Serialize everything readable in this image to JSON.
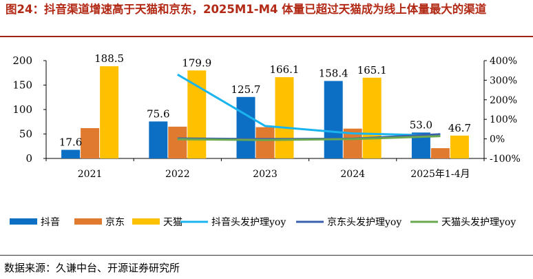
{
  "header": {
    "title": "图24：抖音渠道增速高于天猫和京东，2025M1-M4 体量已超过天猫成为线上体量最大的渠道"
  },
  "footer": {
    "source": "数据来源：久谦中台、开源证券研究所"
  },
  "chart_data": {
    "type": "bar",
    "categories": [
      "2021",
      "2022",
      "2023",
      "2024",
      "2025年1-4月"
    ],
    "series": [
      {
        "name": "抖音",
        "type": "bar",
        "axis": "left",
        "color": "#0d6fc4",
        "values": [
          17.6,
          75.6,
          125.7,
          158.4,
          53.0
        ],
        "labels": [
          "17.6",
          "75.6",
          "125.7",
          "158.4",
          "53.0"
        ]
      },
      {
        "name": "京东",
        "type": "bar",
        "axis": "left",
        "color": "#e07a2e",
        "values": [
          62,
          65,
          64,
          61,
          21
        ],
        "labels": [
          "",
          "",
          "",
          "",
          ""
        ]
      },
      {
        "name": "天猫",
        "type": "bar",
        "axis": "left",
        "color": "#ffc000",
        "values": [
          188.5,
          179.9,
          166.1,
          165.1,
          46.7
        ],
        "labels": [
          "188.5",
          "179.9",
          "166.1",
          "165.1",
          "46.7"
        ]
      },
      {
        "name": "抖音头发护理yoy",
        "type": "line",
        "axis": "right",
        "color": "#1ab4ef",
        "values": [
          null,
          329,
          66,
          28,
          17
        ]
      },
      {
        "name": "京东头发护理yoy",
        "type": "line",
        "axis": "right",
        "color": "#3a5fad",
        "values": [
          null,
          2,
          -1,
          1,
          24
        ]
      },
      {
        "name": "天猫头发护理yoy",
        "type": "line",
        "axis": "right",
        "color": "#6aa84f",
        "values": [
          null,
          -2,
          -6,
          -1,
          14
        ]
      }
    ],
    "ylim": [
      0,
      200
    ],
    "yticks": [
      "0",
      "50",
      "100",
      "150",
      "200"
    ],
    "y2lim": [
      -100,
      400
    ],
    "y2ticks": [
      "-100%",
      "0%",
      "100%",
      "200%",
      "300%",
      "400%"
    ],
    "legend": "bottom",
    "grid": false
  }
}
